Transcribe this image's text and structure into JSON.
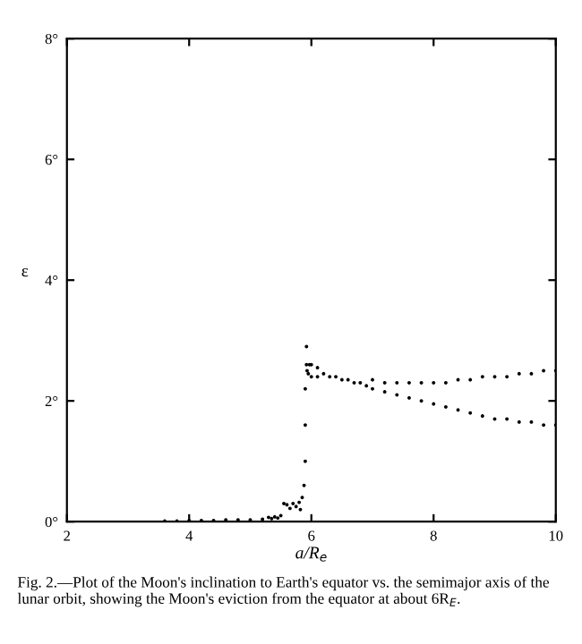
{
  "chart_data": {
    "type": "scatter",
    "xlabel": "a/R$_{e}$",
    "ylabel": "ε",
    "annotations": [
      "Fig. 2.—Plot of the Moon's inclination to Earth's equator vs. the semimajor axis of the lunar orbit, showing the Moon's eviction from the equator at about 6R$_{E}$."
    ],
    "xlim": [
      2,
      10
    ],
    "ylim": [
      0,
      8
    ],
    "xticks": [
      2,
      4,
      6,
      8,
      10
    ],
    "yticks": [
      {
        "value": 0,
        "label": "0°"
      },
      {
        "value": 2,
        "label": "2°"
      },
      {
        "value": 4,
        "label": "4°"
      },
      {
        "value": 6,
        "label": "6°"
      },
      {
        "value": 8,
        "label": "8°"
      }
    ],
    "grid": false,
    "legend": false,
    "series": [
      {
        "color": "#000000",
        "x": [
          3.6,
          3.8,
          4.0,
          4.2,
          4.4,
          4.6,
          4.8,
          5.0,
          5.2,
          5.3,
          5.35,
          5.4,
          5.45,
          5.5,
          5.55,
          5.6,
          5.65,
          5.7,
          5.75,
          5.8,
          5.82,
          5.85,
          5.88,
          5.9,
          5.9,
          5.9,
          5.92,
          5.92,
          5.93,
          5.95,
          5.97,
          6.0,
          6.0,
          6.1,
          6.1,
          6.2,
          6.3,
          6.4,
          6.5,
          6.6,
          6.7,
          6.8,
          6.9,
          7.0,
          7.0,
          7.2,
          7.2,
          7.4,
          7.4,
          7.6,
          7.6,
          7.8,
          7.8,
          8.0,
          8.0,
          8.2,
          8.2,
          8.4,
          8.4,
          8.6,
          8.6,
          8.8,
          8.8,
          9.0,
          9.0,
          9.2,
          9.2,
          9.4,
          9.4,
          9.6,
          9.6,
          9.8,
          9.8,
          10.0,
          10.0
        ],
        "values": [
          0.01,
          0.01,
          0.02,
          0.02,
          0.02,
          0.03,
          0.03,
          0.03,
          0.04,
          0.07,
          0.05,
          0.08,
          0.06,
          0.1,
          0.3,
          0.28,
          0.22,
          0.3,
          0.25,
          0.32,
          0.2,
          0.4,
          0.6,
          1.0,
          1.6,
          2.2,
          2.6,
          2.9,
          2.5,
          2.45,
          2.6,
          2.4,
          2.6,
          2.4,
          2.55,
          2.45,
          2.4,
          2.4,
          2.35,
          2.35,
          2.3,
          2.3,
          2.25,
          2.35,
          2.2,
          2.3,
          2.15,
          2.3,
          2.1,
          2.3,
          2.05,
          2.3,
          2.0,
          2.3,
          1.95,
          2.3,
          1.9,
          2.35,
          1.85,
          2.35,
          1.8,
          2.4,
          1.75,
          2.4,
          1.7,
          2.4,
          1.7,
          2.45,
          1.65,
          2.45,
          1.65,
          2.5,
          1.6,
          2.5,
          1.6
        ]
      }
    ]
  }
}
